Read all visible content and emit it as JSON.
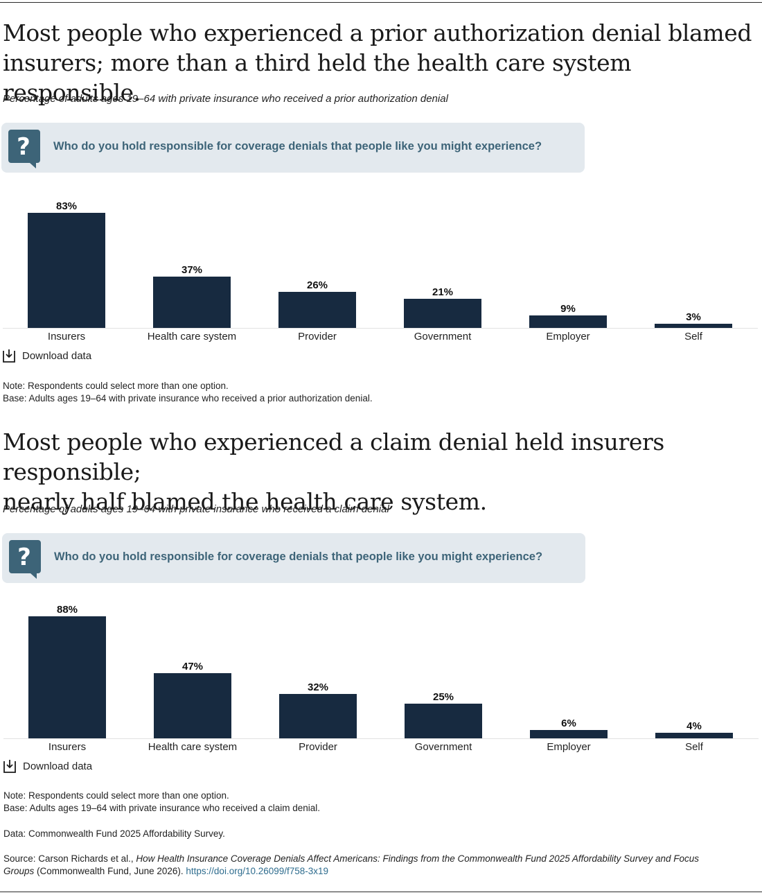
{
  "charts_common": {
    "question": "Who do you hold responsible for coverage denials that people like you might experience?",
    "download_label": "Download data",
    "bar_color": "#172a40",
    "question_color": "#3d6478",
    "question_bg": "#e3e9ee"
  },
  "section1": {
    "title_line1": "Most people who experienced a prior authorization denial blamed",
    "title_line2": "insurers; more than a third held the health care system responsible.",
    "subtitle": "Percentage of adults ages 19–64 with private insurance who received a prior authorization denial",
    "note": "Note: Respondents could select more than one option.",
    "base": "Base: Adults ages 19–64 with private insurance who received a prior authorization denial."
  },
  "section2": {
    "title_line1": "Most people who experienced a claim denial held insurers responsible;",
    "title_line2": "nearly half blamed the health care system.",
    "subtitle": "Percentage of adults ages 19–64 with private insurance who received a claim denial",
    "note": "Note: Respondents could select more than one option.",
    "base": "Base: Adults ages 19–64 with private insurance who received a claim denial."
  },
  "footer": {
    "data": "Data: Commonwealth Fund 2025 Affordability Survey.",
    "source_prefix": "Source: Carson Richards et al., ",
    "source_title": "How Health Insurance Coverage Denials Affect Americans: Findings from the Commonwealth Fund 2025 Affordability Survey and Focus Groups",
    "source_suffix": " (Commonwealth Fund, June 2026). ",
    "source_link": "https://doi.org/10.26099/f758-3x19"
  },
  "chart_data": [
    {
      "type": "bar",
      "categories": [
        "Insurers",
        "Health care system",
        "Provider",
        "Government",
        "Employer",
        "Self"
      ],
      "values": [
        83,
        37,
        26,
        21,
        9,
        3
      ],
      "labels": [
        "83%",
        "37%",
        "26%",
        "21%",
        "9%",
        "3%"
      ],
      "ylim": [
        0,
        100
      ],
      "unit": "%"
    },
    {
      "type": "bar",
      "categories": [
        "Insurers",
        "Health care system",
        "Provider",
        "Government",
        "Employer",
        "Self"
      ],
      "values": [
        88,
        47,
        32,
        25,
        6,
        4
      ],
      "labels": [
        "88%",
        "47%",
        "32%",
        "25%",
        "6%",
        "4%"
      ],
      "ylim": [
        0,
        100
      ],
      "unit": "%"
    }
  ]
}
